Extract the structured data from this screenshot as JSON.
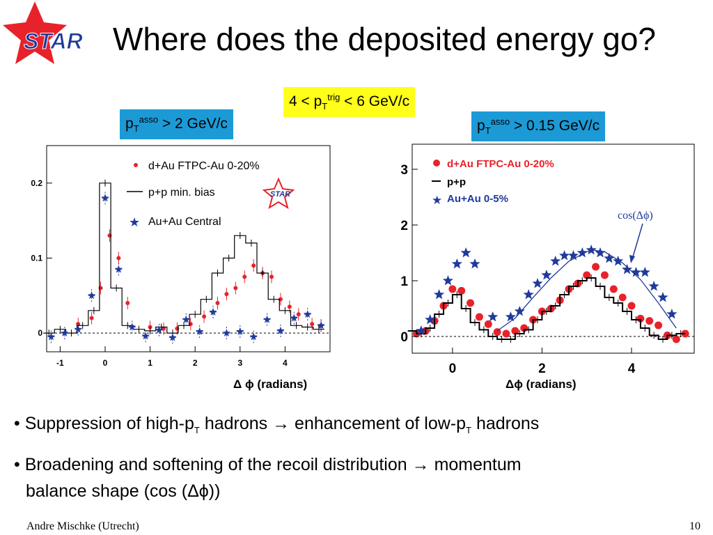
{
  "slide": {
    "title": "Where does the deposited energy go?",
    "logo_text": "STAR",
    "trig": {
      "pre": "4 < p",
      "sub": "T",
      "sup": "trig",
      "post": " < 6 GeV/c"
    },
    "left_box": {
      "pre": "p",
      "sub": "T",
      "sup": "asso",
      "post": " > 2 GeV/c"
    },
    "right_box": {
      "pre": "p",
      "sub": "T",
      "sup": "asso",
      "post": " > 0.15 GeV/c"
    },
    "bullet1": {
      "a": "• Suppression of high-p",
      "asub": "T",
      "b": " hadrons → enhancement of low-p",
      "bsub": "T",
      "c": " hadrons"
    },
    "bullet2_line1": "• Broadening and softening of the recoil distribution → momentum",
    "bullet2_line2": "balance shape (cos (Δϕ))",
    "footer": "Andre Mischke (Utrecht)",
    "page_number": "10",
    "colors": {
      "star_red": "#e8222a",
      "star_blue": "#1f3a9a",
      "box_blue": "#1c9ad6",
      "box_yellow": "#ffff1a"
    }
  },
  "chart_data": [
    {
      "type": "scatter",
      "xlabel": "Δ ϕ (radians)",
      "xlim": [
        -1.3,
        5.0
      ],
      "ylim": [
        -0.025,
        0.25
      ],
      "x_ticks": [
        "-1",
        "0",
        "1",
        "2",
        "3",
        "4"
      ],
      "y_ticks": [
        "0",
        "0.1",
        "0.2"
      ],
      "logo_text": "STAR",
      "legend": {
        "placement": "top-right",
        "entries": [
          "d+Au FTPC-Au 0-20%",
          "p+p min. bias",
          "Au+Au Central"
        ]
      },
      "series": [
        {
          "name": "d+Au FTPC-Au 0-20%",
          "style": "dot",
          "color": "#e8222a",
          "x": [
            -0.6,
            -0.3,
            -0.1,
            0.1,
            0.3,
            0.5,
            1.0,
            1.3,
            1.6,
            1.9,
            2.2,
            2.5,
            2.7,
            2.9,
            3.1,
            3.3,
            3.5,
            3.7,
            3.9,
            4.1,
            4.3,
            4.6,
            4.8
          ],
          "y": [
            0.012,
            0.02,
            0.06,
            0.13,
            0.1,
            0.04,
            0.008,
            0.006,
            0.006,
            0.012,
            0.022,
            0.04,
            0.052,
            0.06,
            0.075,
            0.09,
            0.08,
            0.075,
            0.045,
            0.035,
            0.025,
            0.012,
            0.01
          ]
        },
        {
          "name": "p+p min. bias",
          "style": "step",
          "color": "#000000",
          "x": [
            -1.25,
            -1.0,
            -0.75,
            -0.5,
            -0.25,
            0.0,
            0.25,
            0.5,
            0.75,
            1.0,
            1.25,
            1.5,
            1.75,
            2.0,
            2.25,
            2.5,
            2.75,
            3.0,
            3.25,
            3.5,
            3.75,
            4.0,
            4.25,
            4.5,
            4.75
          ],
          "y": [
            0.0,
            0.005,
            0.0,
            0.01,
            0.03,
            0.2,
            0.06,
            0.01,
            0.005,
            0.003,
            0.008,
            0.0,
            0.01,
            0.025,
            0.045,
            0.08,
            0.1,
            0.13,
            0.12,
            0.08,
            0.045,
            0.03,
            0.01,
            0.008,
            0.005
          ]
        },
        {
          "name": "Au+Au Central",
          "style": "star",
          "color": "#1f3a9a",
          "x": [
            -1.2,
            -0.9,
            -0.6,
            -0.3,
            0.0,
            0.3,
            0.6,
            0.9,
            1.2,
            1.5,
            1.8,
            2.1,
            2.4,
            2.7,
            3.0,
            3.3,
            3.6,
            3.9,
            4.2,
            4.5,
            4.8
          ],
          "y": [
            -0.005,
            0.0,
            0.005,
            0.05,
            0.18,
            0.085,
            0.008,
            -0.004,
            0.004,
            -0.006,
            0.018,
            0.002,
            0.028,
            0.0,
            0.002,
            -0.005,
            0.018,
            0.003,
            0.02,
            0.025,
            0.01
          ]
        }
      ]
    },
    {
      "type": "scatter",
      "xlabel": "Δϕ (radians)",
      "xlim": [
        -0.9,
        5.4
      ],
      "ylim": [
        -0.3,
        3.45
      ],
      "x_ticks": [
        "0",
        "2",
        "4"
      ],
      "y_ticks": [
        "0",
        "1",
        "2",
        "3"
      ],
      "annotation": "cos(Δϕ)",
      "legend": {
        "placement": "top-left",
        "entries": [
          "d+Au FTPC-Au 0-20%",
          "p+p",
          "Au+Au 0-5%"
        ]
      },
      "series": [
        {
          "name": "d+Au FTPC-Au 0-20%",
          "style": "dot",
          "color": "#e8222a",
          "x": [
            -0.8,
            -0.6,
            -0.4,
            -0.2,
            0.0,
            0.2,
            0.4,
            0.6,
            0.8,
            1.0,
            1.2,
            1.4,
            1.6,
            1.8,
            2.0,
            2.2,
            2.4,
            2.6,
            2.8,
            3.0,
            3.2,
            3.4,
            3.6,
            3.8,
            4.0,
            4.2,
            4.4,
            4.6,
            4.8,
            5.0,
            5.2
          ],
          "y": [
            0.05,
            0.1,
            0.28,
            0.55,
            0.85,
            0.82,
            0.6,
            0.35,
            0.22,
            0.08,
            0.05,
            0.1,
            0.15,
            0.3,
            0.45,
            0.5,
            0.65,
            0.85,
            0.95,
            1.1,
            1.25,
            1.1,
            0.85,
            0.7,
            0.55,
            0.32,
            0.28,
            0.2,
            0.02,
            -0.05,
            0.05
          ]
        },
        {
          "name": "p+p",
          "style": "step",
          "color": "#000000",
          "x": [
            -0.9,
            -0.7,
            -0.5,
            -0.3,
            -0.1,
            0.1,
            0.3,
            0.5,
            0.7,
            0.9,
            1.1,
            1.3,
            1.5,
            1.7,
            1.9,
            2.1,
            2.3,
            2.5,
            2.7,
            2.9,
            3.1,
            3.3,
            3.5,
            3.7,
            3.9,
            4.1,
            4.3,
            4.5,
            4.7,
            4.9,
            5.1
          ],
          "y": [
            0.1,
            0.05,
            0.15,
            0.4,
            0.6,
            0.75,
            0.5,
            0.25,
            0.12,
            0.0,
            -0.05,
            -0.05,
            0.05,
            0.12,
            0.3,
            0.45,
            0.55,
            0.75,
            0.9,
            1.0,
            1.05,
            0.9,
            0.7,
            0.6,
            0.45,
            0.3,
            0.15,
            0.02,
            -0.05,
            0.02,
            0.05
          ]
        },
        {
          "name": "Au+Au 0-5%",
          "style": "star",
          "color": "#1f3a9a",
          "x": [
            -0.7,
            -0.5,
            -0.3,
            -0.1,
            0.1,
            0.3,
            0.5,
            0.9,
            1.3,
            1.5,
            1.7,
            1.9,
            2.1,
            2.3,
            2.5,
            2.7,
            2.9,
            3.1,
            3.3,
            3.5,
            3.7,
            3.9,
            4.1,
            4.3,
            4.5,
            4.7,
            4.9
          ],
          "y": [
            0.1,
            0.3,
            0.75,
            1.0,
            1.3,
            1.5,
            1.3,
            0.35,
            0.35,
            0.45,
            0.75,
            0.95,
            1.1,
            1.35,
            1.45,
            1.45,
            1.5,
            1.55,
            1.5,
            1.4,
            1.35,
            1.2,
            1.15,
            1.15,
            0.9,
            0.7,
            0.4
          ]
        },
        {
          "name": "cos(Δϕ)",
          "style": "curve",
          "color": "#1f3a9a",
          "x": [
            1.0,
            1.4,
            1.8,
            2.2,
            2.6,
            3.0,
            3.14,
            3.4,
            3.8,
            4.2,
            4.6,
            5.0
          ],
          "y": [
            0.1,
            0.33,
            0.7,
            1.05,
            1.35,
            1.52,
            1.55,
            1.52,
            1.32,
            1.02,
            0.6,
            0.15
          ]
        }
      ]
    }
  ]
}
